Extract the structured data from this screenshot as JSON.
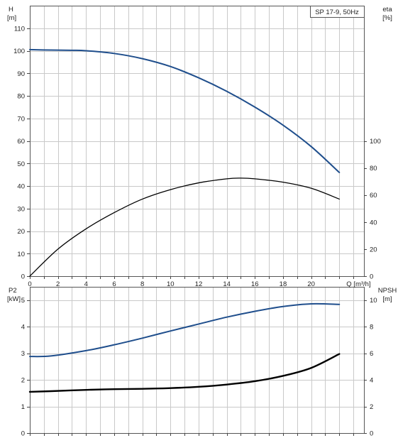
{
  "chart_data": [
    {
      "type": "line",
      "legend": "SP 17-9, 50Hz",
      "x_axis": {
        "label": "Q [m³/h]",
        "ticks": [
          0,
          2,
          4,
          6,
          8,
          10,
          12,
          14,
          16,
          18,
          20
        ],
        "range": [
          0,
          24
        ]
      },
      "left_axis": {
        "label_top": "H",
        "label_unit": "[m]",
        "ticks": [
          0,
          10,
          20,
          30,
          40,
          50,
          60,
          70,
          80,
          90,
          100,
          110
        ],
        "range": [
          0,
          120
        ]
      },
      "right_axis": {
        "label_top": "eta",
        "label_unit": "[%]",
        "ticks": [
          0,
          20,
          40,
          60,
          80,
          100
        ],
        "range": [
          0,
          200
        ]
      },
      "grid": true,
      "series": [
        {
          "axis": "left",
          "color": "#1f4e8c",
          "x": [
            0,
            1.5,
            3,
            4,
            6,
            8,
            10,
            12,
            14,
            16,
            18,
            20,
            22
          ],
          "y": [
            100.5,
            100.3,
            100.2,
            100,
            98.8,
            96.5,
            93,
            88,
            82,
            75,
            67,
            57.5,
            46
          ]
        },
        {
          "axis": "right",
          "color": "#000000",
          "x": [
            0,
            2,
            4,
            6,
            8,
            10,
            12,
            14,
            15,
            16,
            18,
            20,
            22
          ],
          "y": [
            0,
            20,
            35,
            47,
            57,
            64,
            69,
            72,
            72.5,
            72,
            69.5,
            65,
            57
          ]
        }
      ]
    },
    {
      "type": "line",
      "left_axis": {
        "label_top": "P2",
        "label_unit": "[kW]",
        "ticks": [
          0,
          1,
          2,
          3,
          4,
          5
        ],
        "range": [
          0,
          5.5
        ]
      },
      "right_axis": {
        "label_top": "NPSH",
        "label_unit": "[m]",
        "ticks": [
          0,
          2,
          4,
          6,
          8,
          10
        ],
        "range": [
          0,
          11
        ]
      },
      "grid": true,
      "series": [
        {
          "axis": "left",
          "color": "#1f4e8c",
          "x": [
            0,
            1.5,
            4,
            6,
            8,
            10,
            12,
            14,
            16,
            18,
            20,
            22
          ],
          "y": [
            2.88,
            2.9,
            3.1,
            3.32,
            3.57,
            3.84,
            4.1,
            4.36,
            4.58,
            4.76,
            4.86,
            4.84
          ]
        },
        {
          "axis": "right",
          "color": "#000000",
          "x": [
            0,
            1.5,
            4,
            6,
            8,
            10,
            12,
            14,
            16,
            18,
            20,
            22
          ],
          "y": [
            3.1,
            3.15,
            3.25,
            3.3,
            3.33,
            3.38,
            3.48,
            3.65,
            3.9,
            4.3,
            4.9,
            5.95
          ]
        }
      ]
    }
  ]
}
